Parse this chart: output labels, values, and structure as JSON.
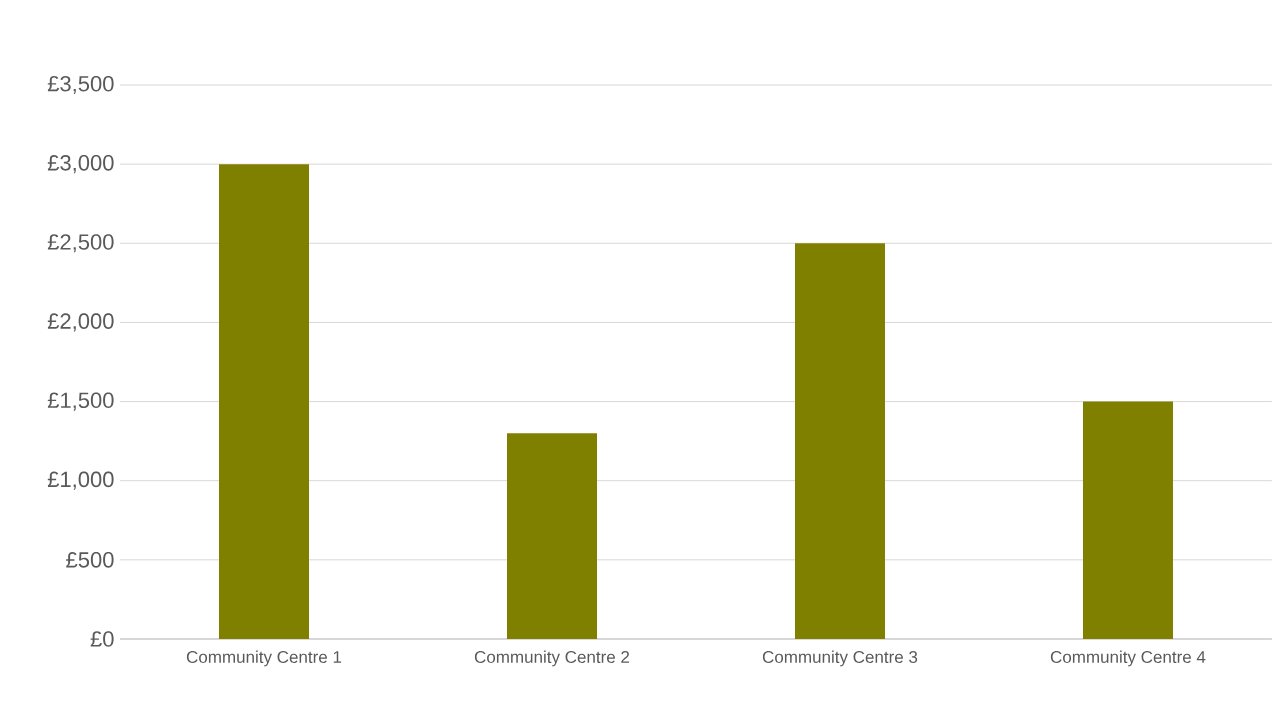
{
  "chart_data": {
    "type": "bar",
    "categories": [
      "Community Centre 1",
      "Community Centre 2",
      "Community Centre 3",
      "Community Centre 4"
    ],
    "values": [
      3000,
      1300,
      2500,
      1500
    ],
    "color": "#808000",
    "ylim": [
      0,
      3500
    ],
    "yticks": [
      {
        "value": 0,
        "label": "£0"
      },
      {
        "value": 500,
        "label": "£500"
      },
      {
        "value": 1000,
        "label": "£1,000"
      },
      {
        "value": 1500,
        "label": "£1,500"
      },
      {
        "value": 2000,
        "label": "£2,000"
      },
      {
        "value": 2500,
        "label": "£2,500"
      },
      {
        "value": 3000,
        "label": "£3,000"
      },
      {
        "value": 3500,
        "label": "£3,500"
      }
    ],
    "grid": "y"
  }
}
